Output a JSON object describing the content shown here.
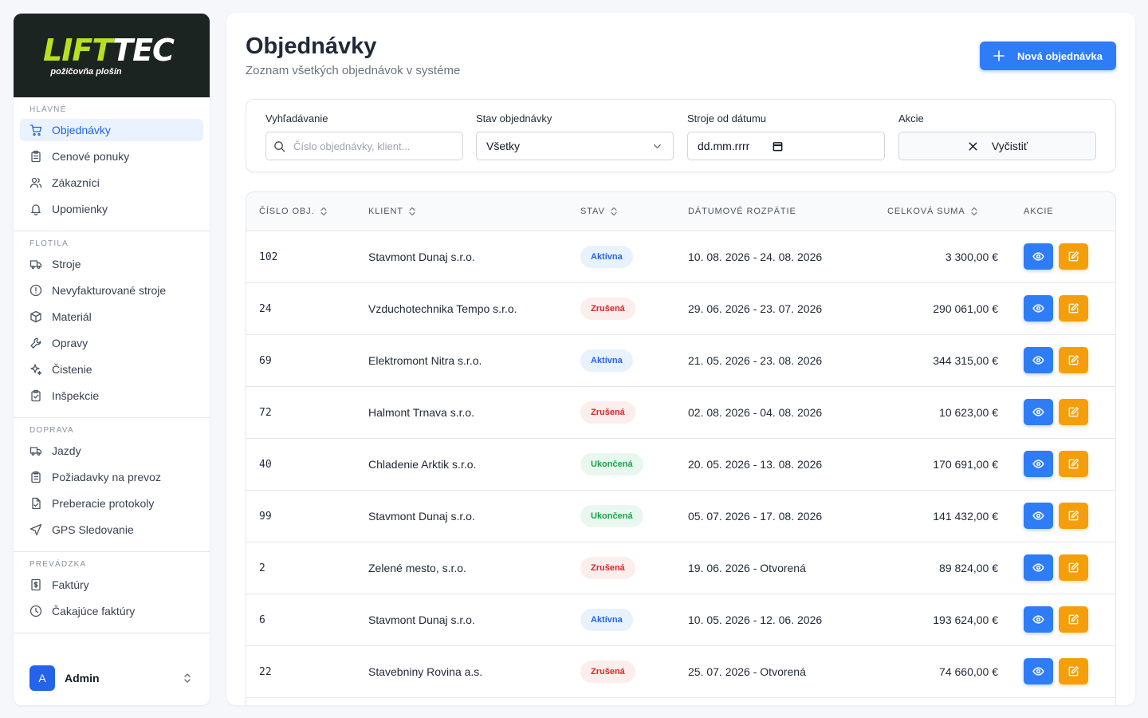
{
  "brand": {
    "logo_lift": "LIFT",
    "logo_tec": "TEC",
    "logo_sub": "požičovňa plošín"
  },
  "sidebar": {
    "sections": [
      {
        "title": "HLAVNÉ",
        "items": [
          {
            "label": "Objednávky",
            "icon": "cart-icon",
            "active": true
          },
          {
            "label": "Cenové ponuky",
            "icon": "clipboard-icon"
          },
          {
            "label": "Zákazníci",
            "icon": "users-icon"
          },
          {
            "label": "Upomienky",
            "icon": "bell-icon"
          }
        ]
      },
      {
        "title": "FLOTILA",
        "items": [
          {
            "label": "Stroje",
            "icon": "truck-icon"
          },
          {
            "label": "Nevyfakturované stroje",
            "icon": "alert-circle-icon"
          },
          {
            "label": "Materiál",
            "icon": "box-icon"
          },
          {
            "label": "Opravy",
            "icon": "wrench-icon"
          },
          {
            "label": "Čistenie",
            "icon": "sparkles-icon"
          },
          {
            "label": "Inšpekcie",
            "icon": "clipboard-check-icon"
          }
        ]
      },
      {
        "title": "DOPRAVA",
        "items": [
          {
            "label": "Jazdy",
            "icon": "truck-icon"
          },
          {
            "label": "Požiadavky na prevoz",
            "icon": "clipboard-list-icon"
          },
          {
            "label": "Preberacie protokoly",
            "icon": "file-check-icon"
          },
          {
            "label": "GPS Sledovanie",
            "icon": "navigation-icon"
          }
        ]
      },
      {
        "title": "PREVÁDZKA",
        "items": [
          {
            "label": "Faktúry",
            "icon": "invoice-icon"
          },
          {
            "label": "Čakajúce faktúry",
            "icon": "clock-icon"
          }
        ]
      }
    ],
    "user": {
      "initial": "A",
      "name": "Admin"
    }
  },
  "header": {
    "title": "Objednávky",
    "subtitle": "Zoznam všetkých objednávok v systéme",
    "new_button": "Nová objednávka"
  },
  "filters": {
    "search": {
      "label": "Vyhľadávanie",
      "placeholder": "Číslo objednávky, klient..."
    },
    "status": {
      "label": "Stav objednávky",
      "value": "Všetky"
    },
    "date": {
      "label": "Stroje od dátumu",
      "value": "dd.mm.rrrr"
    },
    "actions": {
      "label": "Akcie",
      "clear": "Vyčistiť"
    }
  },
  "table": {
    "columns": {
      "number": "ČÍSLO OBJ.",
      "client": "KLIENT",
      "status": "STAV",
      "range": "DÁTUMOVÉ ROZPÄTIE",
      "sum": "CELKOVÁ SUMA",
      "actions": "AKCIE"
    },
    "status_colors": {
      "Aktívna": "#2563eb",
      "Zrušená": "#dc2626",
      "Ukončená": "#16a34a"
    },
    "rows": [
      {
        "number": "102",
        "client": "Stavmont Dunaj s.r.o.",
        "status": "Aktívna",
        "range": "10. 08. 2026 - 24. 08. 2026",
        "sum": "3 300,00 €"
      },
      {
        "number": "24",
        "client": "Vzduchotechnika Tempo s.r.o.",
        "status": "Zrušená",
        "range": "29. 06. 2026 - 23. 07. 2026",
        "sum": "290 061,00 €"
      },
      {
        "number": "69",
        "client": "Elektromont Nitra s.r.o.",
        "status": "Aktívna",
        "range": "21. 05. 2026 - 23. 08. 2026",
        "sum": "344 315,00 €"
      },
      {
        "number": "72",
        "client": "Halmont Trnava s.r.o.",
        "status": "Zrušená",
        "range": "02. 08. 2026 - 04. 08. 2026",
        "sum": "10 623,00 €"
      },
      {
        "number": "40",
        "client": "Chladenie Arktik s.r.o.",
        "status": "Ukončená",
        "range": "20. 05. 2026 - 13. 08. 2026",
        "sum": "170 691,00 €"
      },
      {
        "number": "99",
        "client": "Stavmont Dunaj s.r.o.",
        "status": "Ukončená",
        "range": "05. 07. 2026 - 17. 08. 2026",
        "sum": "141 432,00 €"
      },
      {
        "number": "2",
        "client": "Zelené mesto, s.r.o.",
        "status": "Zrušená",
        "range": "19. 06. 2026 - Otvorená",
        "sum": "89 824,00 €"
      },
      {
        "number": "6",
        "client": "Stavmont Dunaj s.r.o.",
        "status": "Aktívna",
        "range": "10. 05. 2026 - 12. 06. 2026",
        "sum": "193 624,00 €"
      },
      {
        "number": "22",
        "client": "Stavebniny Rovina a.s.",
        "status": "Zrušená",
        "range": "25. 07. 2026 - Otvorená",
        "sum": "74 660,00 €"
      }
    ]
  }
}
